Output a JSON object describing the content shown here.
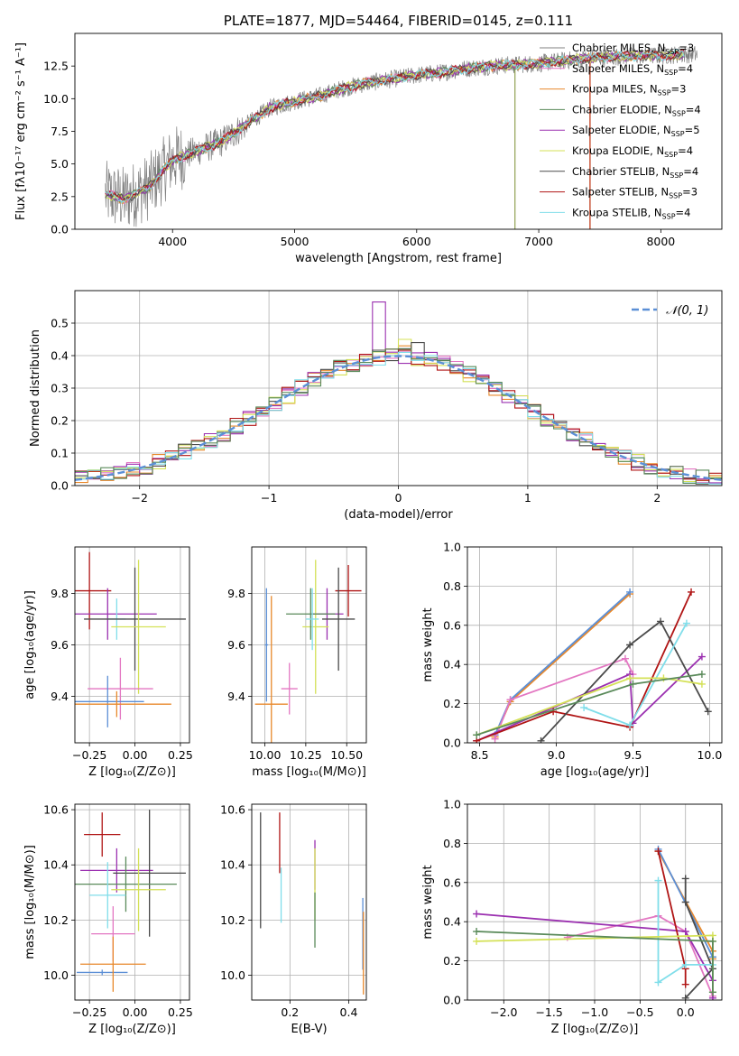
{
  "chart_data": [
    {
      "id": "spectrum",
      "type": "line",
      "title": "PLATE=1877, MJD=54464, FIBERID=0145, z=0.111",
      "xlabel": "wavelength [Angstrom, rest frame]",
      "ylabel": "Flux [fλ10⁻¹⁷ erg cm⁻² s⁻¹ A⁻¹]",
      "xlim": [
        3200,
        8500
      ],
      "ylim": [
        0,
        15
      ],
      "xticks": [
        4000,
        5000,
        6000,
        7000,
        8000
      ],
      "yticks": [
        0.0,
        2.5,
        5.0,
        7.5,
        10.0,
        12.5
      ],
      "ytick_labels": [
        "0.0",
        "2.5",
        "5.0",
        "7.5",
        "10.0",
        "12.5"
      ],
      "legend_position": "right",
      "data_color": "#7f7f7f",
      "data_range": [
        3450,
        8300
      ],
      "model_range": [
        3450,
        8200
      ],
      "flux_anchor_points": {
        "x": [
          3450,
          3600,
          3800,
          4000,
          4200,
          4400,
          4600,
          4800,
          5000,
          5200,
          5400,
          5600,
          5800,
          6000,
          6200,
          6400,
          6600,
          6800,
          7000,
          7200,
          7400,
          7600,
          7800,
          8000,
          8200
        ],
        "y": [
          2.7,
          2.3,
          3.2,
          5.3,
          6.0,
          6.7,
          8.0,
          9.3,
          9.8,
          10.2,
          10.8,
          11.2,
          11.5,
          11.8,
          12.0,
          12.3,
          12.5,
          12.6,
          12.7,
          12.9,
          13.1,
          13.2,
          13.3,
          13.3,
          13.4
        ]
      },
      "series": [
        {
          "name": "Chabrier MILES, N_SSP=3",
          "color": "#808080"
        },
        {
          "name": "Salpeter MILES, N_SSP=4",
          "color": "#e377c2"
        },
        {
          "name": "Kroupa MILES, N_SSP=3",
          "color": "#e8882b"
        },
        {
          "name": "Chabrier ELODIE, N_SSP=4",
          "color": "#5a8a5a"
        },
        {
          "name": "Salpeter ELODIE, N_SSP=5",
          "color": "#9b30b0"
        },
        {
          "name": "Kroupa ELODIE, N_SSP=4",
          "color": "#d4e157"
        },
        {
          "name": "Chabrier STELIB, N_SSP=4",
          "color": "#4a4a4a"
        },
        {
          "name": "Salpeter STELIB, N_SSP=3",
          "color": "#b01515"
        },
        {
          "name": "Kroupa STELIB, N_SSP=4",
          "color": "#80deea"
        }
      ]
    },
    {
      "id": "residuals",
      "type": "histogram",
      "xlabel": "(data-model)/error",
      "ylabel": "Normed distribution",
      "xlim": [
        -2.5,
        2.5
      ],
      "ylim": [
        0,
        0.6
      ],
      "xticks": [
        -2,
        -1,
        0,
        1,
        2
      ],
      "xtick_labels": [
        "−2",
        "−1",
        "0",
        "1",
        "2"
      ],
      "yticks": [
        0.0,
        0.1,
        0.2,
        0.3,
        0.4,
        0.5
      ],
      "ytick_labels": [
        "0.0",
        "0.1",
        "0.2",
        "0.3",
        "0.4",
        "0.5"
      ],
      "grid": true,
      "legend_position": "top-right",
      "gaussian": {
        "label": "𝒩(0, 1)",
        "mu": 0,
        "sigma": 1,
        "color": "#5b8fd6"
      },
      "bin_width": 0.1,
      "bin_start": -2.5,
      "series": [
        {
          "color": "#e8882b",
          "peak_bin": 25,
          "peak": 0.43
        },
        {
          "color": "#e377c2",
          "peak_bin": 22,
          "peak": 0.4
        },
        {
          "color": "#9b30b0",
          "peak_bin": 23,
          "peak": 0.565
        },
        {
          "color": "#d4e157",
          "peak_bin": 25,
          "peak": 0.45
        },
        {
          "color": "#4a4a4a",
          "peak_bin": 26,
          "peak": 0.44
        },
        {
          "color": "#b01515",
          "peak_bin": 24,
          "peak": 0.42
        },
        {
          "color": "#80deea",
          "peak_bin": 25,
          "peak": 0.41
        },
        {
          "color": "#5a8a5a",
          "peak_bin": 24,
          "peak": 0.42
        }
      ]
    },
    {
      "id": "age_vs_Z",
      "type": "errorbar",
      "xlabel": "Z [log₁₀(Z/Z⊙)]",
      "ylabel": "age  [log₁₀(age/yr)]",
      "xlim": [
        -0.33,
        0.3
      ],
      "ylim": [
        9.22,
        9.98
      ],
      "xticks": [
        -0.25,
        0.0,
        0.25
      ],
      "xtick_labels": [
        "−0.25",
        "0.00",
        "0.25"
      ],
      "yticks": [
        9.4,
        9.6,
        9.8
      ],
      "ytick_labels": [
        "9.4",
        "9.6",
        "9.8"
      ],
      "points": [
        {
          "x": -0.25,
          "xe": 0.12,
          "y": 9.81,
          "ye": 0.15,
          "c": "#b01515"
        },
        {
          "x": -0.15,
          "xe": 0.27,
          "y": 9.72,
          "ye": 0.1,
          "c": "#9b30b0"
        },
        {
          "x": -0.1,
          "xe": 0.05,
          "y": 9.7,
          "ye": 0.08,
          "c": "#80deea"
        },
        {
          "x": 0.0,
          "xe": 0.28,
          "y": 9.7,
          "ye": 0.2,
          "c": "#4a4a4a"
        },
        {
          "x": 0.02,
          "xe": 0.15,
          "y": 9.67,
          "ye": 0.26,
          "c": "#d4e157"
        },
        {
          "x": -0.08,
          "xe": 0.18,
          "y": 9.43,
          "ye": 0.12,
          "c": "#e377c2"
        },
        {
          "x": -0.15,
          "xe": 0.2,
          "y": 9.38,
          "ye": 0.1,
          "c": "#5b8fd6"
        },
        {
          "x": -0.1,
          "xe": 0.3,
          "y": 9.37,
          "ye": 0.05,
          "c": "#e8882b"
        }
      ]
    },
    {
      "id": "age_vs_mass",
      "type": "errorbar",
      "xlabel": "mass [log₁₀(M/M⊙)]",
      "xlim": [
        9.92,
        10.62
      ],
      "ylim": [
        9.22,
        9.98
      ],
      "xticks": [
        10.0,
        10.25,
        10.5
      ],
      "xtick_labels": [
        "10.00",
        "10.25",
        "10.50"
      ],
      "yticks": [
        9.4,
        9.6,
        9.8
      ],
      "ytick_labels": [
        "9.4",
        "9.6",
        "9.8"
      ],
      "points": [
        {
          "x": 10.51,
          "xe": 0.08,
          "y": 9.81,
          "ye": 0.1,
          "c": "#b01515"
        },
        {
          "x": 10.38,
          "xe": 0.1,
          "y": 9.72,
          "ye": 0.1,
          "c": "#9b30b0"
        },
        {
          "x": 10.45,
          "xe": 0.1,
          "y": 9.7,
          "ye": 0.2,
          "c": "#4a4a4a"
        },
        {
          "x": 10.31,
          "xe": 0.08,
          "y": 9.67,
          "ye": 0.26,
          "c": "#d4e157"
        },
        {
          "x": 10.28,
          "xe": 0.15,
          "y": 9.72,
          "ye": 0.1,
          "c": "#5a8a5a"
        },
        {
          "x": 10.29,
          "xe": 0.04,
          "y": 9.7,
          "ye": 0.12,
          "c": "#80deea"
        },
        {
          "x": 10.15,
          "xe": 0.05,
          "y": 9.43,
          "ye": 0.1,
          "c": "#e377c2"
        },
        {
          "x": 10.01,
          "xe": 0.01,
          "y": 9.6,
          "ye": 0.22,
          "c": "#5b8fd6"
        },
        {
          "x": 10.04,
          "xe": 0.1,
          "y": 9.37,
          "ye": 0.42,
          "c": "#e8882b"
        }
      ]
    },
    {
      "id": "mass_weight_vs_age",
      "type": "line",
      "xlabel": "age  [log₁₀(age/yr)]",
      "ylabel": "mass weight",
      "xlim": [
        8.42,
        10.08
      ],
      "ylim": [
        0,
        1
      ],
      "xticks": [
        8.5,
        9.0,
        9.5,
        10.0
      ],
      "xtick_labels": [
        "8.5",
        "9.0",
        "9.5",
        "10.0"
      ],
      "yticks": [
        0.0,
        0.2,
        0.4,
        0.6,
        0.8,
        1.0
      ],
      "ytick_labels": [
        "0.0",
        "0.2",
        "0.4",
        "0.6",
        "0.8",
        "1.0"
      ],
      "series": [
        {
          "color": "#e8882b",
          "x": [
            8.6,
            8.7,
            9.48
          ],
          "y": [
            0.03,
            0.21,
            0.76
          ]
        },
        {
          "color": "#5b8fd6",
          "x": [
            8.6,
            8.7,
            9.48
          ],
          "y": [
            0.04,
            0.22,
            0.77
          ]
        },
        {
          "color": "#e377c2",
          "x": [
            8.6,
            8.7,
            9.45,
            9.5
          ],
          "y": [
            0.02,
            0.22,
            0.43,
            0.35
          ]
        },
        {
          "color": "#9b30b0",
          "x": [
            8.48,
            9.48,
            9.5,
            9.95
          ],
          "y": [
            0.01,
            0.35,
            0.1,
            0.44
          ]
        },
        {
          "color": "#b01515",
          "x": [
            8.48,
            8.98,
            9.48,
            9.88
          ],
          "y": [
            0.01,
            0.16,
            0.08,
            0.77
          ]
        },
        {
          "color": "#4a4a4a",
          "x": [
            8.9,
            9.48,
            9.68,
            9.99
          ],
          "y": [
            0.01,
            0.5,
            0.62,
            0.16
          ]
        },
        {
          "color": "#80deea",
          "x": [
            9.18,
            9.48,
            9.85
          ],
          "y": [
            0.18,
            0.09,
            0.61
          ]
        },
        {
          "color": "#d4e157",
          "x": [
            8.48,
            9.48,
            9.7,
            9.95
          ],
          "y": [
            0.04,
            0.33,
            0.33,
            0.3
          ]
        },
        {
          "color": "#5a8a5a",
          "x": [
            8.48,
            9.5,
            9.95
          ],
          "y": [
            0.04,
            0.3,
            0.35
          ]
        }
      ]
    },
    {
      "id": "mass_vs_Z",
      "type": "errorbar",
      "xlabel": "Z [log₁₀(Z/Z⊙)]",
      "ylabel": "mass [log₁₀(M/M⊙)]",
      "xlim": [
        -0.33,
        0.3
      ],
      "ylim": [
        9.91,
        10.62
      ],
      "xticks": [
        -0.25,
        0.0,
        0.25
      ],
      "xtick_labels": [
        "−0.25",
        "0.00",
        "0.25"
      ],
      "yticks": [
        10.0,
        10.2,
        10.4,
        10.6
      ],
      "ytick_labels": [
        "10.0",
        "10.2",
        "10.4",
        "10.6"
      ],
      "points": [
        {
          "x": -0.18,
          "xe": 0.1,
          "y": 10.51,
          "ye": 0.08,
          "c": "#b01515"
        },
        {
          "x": -0.1,
          "xe": 0.2,
          "y": 10.38,
          "ye": 0.08,
          "c": "#9b30b0"
        },
        {
          "x": 0.08,
          "xe": 0.2,
          "y": 10.37,
          "ye": 0.23,
          "c": "#4a4a4a"
        },
        {
          "x": -0.05,
          "xe": 0.28,
          "y": 10.33,
          "ye": 0.1,
          "c": "#5a8a5a"
        },
        {
          "x": 0.02,
          "xe": 0.15,
          "y": 10.31,
          "ye": 0.15,
          "c": "#d4e157"
        },
        {
          "x": -0.15,
          "xe": 0.1,
          "y": 10.29,
          "ye": 0.12,
          "c": "#80deea"
        },
        {
          "x": -0.12,
          "xe": 0.12,
          "y": 10.15,
          "ye": 0.1,
          "c": "#e377c2"
        },
        {
          "x": -0.18,
          "xe": 0.14,
          "y": 10.01,
          "ye": 0.01,
          "c": "#5b8fd6"
        },
        {
          "x": -0.12,
          "xe": 0.18,
          "y": 10.04,
          "ye": 0.1,
          "c": "#e8882b"
        }
      ]
    },
    {
      "id": "mass_vs_ebv",
      "type": "errorbar",
      "xlabel": "E(B-V)",
      "xlim": [
        0.07,
        0.46
      ],
      "ylim": [
        9.91,
        10.62
      ],
      "xticks": [
        0.2,
        0.4
      ],
      "xtick_labels": [
        "0.2",
        "0.4"
      ],
      "yticks": [
        10.0,
        10.2,
        10.4,
        10.6
      ],
      "ytick_labels": [
        "10.0",
        "10.2",
        "10.4",
        "10.6"
      ],
      "points": [
        {
          "x": 0.1,
          "y": 10.38,
          "ye": 0.21,
          "c": "#4a4a4a"
        },
        {
          "x": 0.165,
          "y": 10.48,
          "ye": 0.11,
          "c": "#b01515"
        },
        {
          "x": 0.17,
          "y": 10.29,
          "ye": 0.1,
          "c": "#80deea"
        },
        {
          "x": 0.285,
          "y": 10.4,
          "ye": 0.09,
          "c": "#9b30b0"
        },
        {
          "x": 0.285,
          "y": 10.33,
          "ye": 0.13,
          "c": "#d4e157"
        },
        {
          "x": 0.285,
          "y": 10.2,
          "ye": 0.1,
          "c": "#5a8a5a"
        },
        {
          "x": 0.448,
          "y": 10.15,
          "ye": 0.13,
          "c": "#5b8fd6"
        },
        {
          "x": 0.45,
          "y": 10.08,
          "ye": 0.15,
          "c": "#e8882b"
        }
      ]
    },
    {
      "id": "mass_weight_vs_Z",
      "type": "line",
      "xlabel": "Z [log₁₀(Z/Z⊙)]",
      "ylabel": "mass weight",
      "xlim": [
        -2.4,
        0.4
      ],
      "ylim": [
        0,
        1
      ],
      "xticks": [
        -2.0,
        -1.5,
        -1.0,
        -0.5,
        0.0
      ],
      "xtick_labels": [
        "−2.0",
        "−1.5",
        "−1.0",
        "−0.5",
        "0.0"
      ],
      "yticks": [
        0.0,
        0.2,
        0.4,
        0.6,
        0.8,
        1.0
      ],
      "ytick_labels": [
        "0.0",
        "0.2",
        "0.4",
        "0.6",
        "0.8",
        "1.0"
      ],
      "series": [
        {
          "color": "#e8882b",
          "x": [
            -0.3,
            0.3,
            0.3
          ],
          "y": [
            0.76,
            0.25,
            0.21
          ]
        },
        {
          "color": "#5b8fd6",
          "x": [
            -0.3,
            0.3,
            0.3
          ],
          "y": [
            0.77,
            0.22,
            0.04
          ]
        },
        {
          "color": "#e377c2",
          "x": [
            -1.3,
            -0.3,
            0.0,
            0.3
          ],
          "y": [
            0.32,
            0.43,
            0.35,
            0.02
          ]
        },
        {
          "color": "#9b30b0",
          "x": [
            -2.3,
            0.0,
            0.3,
            0.3
          ],
          "y": [
            0.44,
            0.35,
            0.1,
            0.01
          ]
        },
        {
          "color": "#b01515",
          "x": [
            -0.3,
            0.0,
            0.0
          ],
          "y": [
            0.76,
            0.16,
            0.08
          ]
        },
        {
          "color": "#4a4a4a",
          "x": [
            0.0,
            0.0,
            0.3,
            0.0
          ],
          "y": [
            0.62,
            0.5,
            0.16,
            0.01
          ]
        },
        {
          "color": "#80deea",
          "x": [
            -0.3,
            -0.3,
            0.0,
            0.3
          ],
          "y": [
            0.61,
            0.09,
            0.18,
            0.18
          ]
        },
        {
          "color": "#d4e157",
          "x": [
            -2.3,
            0.3,
            0.3,
            0.3
          ],
          "y": [
            0.3,
            0.33,
            0.3,
            0.04
          ]
        },
        {
          "color": "#5a8a5a",
          "x": [
            -2.3,
            0.3,
            0.3
          ],
          "y": [
            0.35,
            0.3,
            0.04
          ]
        }
      ]
    }
  ]
}
